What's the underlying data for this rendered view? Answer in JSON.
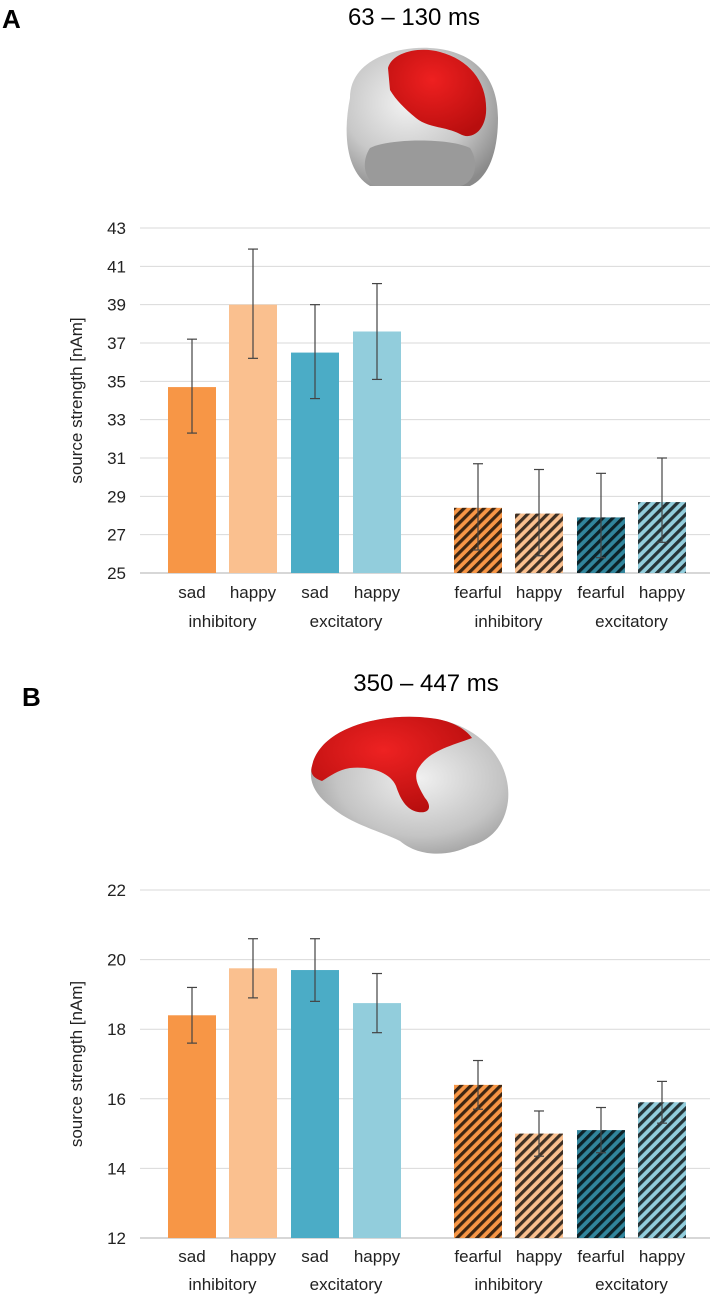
{
  "chart_data": [
    {
      "type": "bar",
      "panel": "A",
      "title": "63 – 130 ms",
      "ylabel": "source strength [nAm]",
      "ylim": [
        25,
        43
      ],
      "yticks": [
        25,
        27,
        29,
        31,
        33,
        35,
        37,
        39,
        41,
        43
      ],
      "grid": true,
      "groups": [
        {
          "label": "inhibitory",
          "bars": [
            {
              "label": "sad",
              "value": 34.7,
              "err_low": 32.3,
              "err_high": 37.2,
              "color": "#f79646",
              "hatch": false
            },
            {
              "label": "happy",
              "value": 39.0,
              "err_low": 36.2,
              "err_high": 41.9,
              "color": "#fac08f",
              "hatch": false
            }
          ]
        },
        {
          "label": "excitatory",
          "bars": [
            {
              "label": "sad",
              "value": 36.5,
              "err_low": 34.1,
              "err_high": 39.0,
              "color": "#4bacc6",
              "hatch": false
            },
            {
              "label": "happy",
              "value": 37.6,
              "err_low": 35.1,
              "err_high": 40.1,
              "color": "#92cddc",
              "hatch": false
            }
          ]
        },
        {
          "label": "inhibitory",
          "bars": [
            {
              "label": "fearful",
              "value": 28.4,
              "err_low": 26.2,
              "err_high": 30.7,
              "color": "#f79646",
              "hatch": true
            },
            {
              "label": "happy",
              "value": 28.1,
              "err_low": 25.9,
              "err_high": 30.4,
              "color": "#fac08f",
              "hatch": true
            }
          ]
        },
        {
          "label": "excitatory",
          "bars": [
            {
              "label": "fearful",
              "value": 27.9,
              "err_low": 25.8,
              "err_high": 30.2,
              "color": "#31859c",
              "hatch": true
            },
            {
              "label": "happy",
              "value": 28.7,
              "err_low": 26.6,
              "err_high": 31.0,
              "color": "#92cddc",
              "hatch": true
            }
          ]
        }
      ]
    },
    {
      "type": "bar",
      "panel": "B",
      "title": "350 – 447 ms",
      "ylabel": "source strength [nAm]",
      "ylim": [
        12,
        22
      ],
      "yticks": [
        12,
        14,
        16,
        18,
        20,
        22
      ],
      "grid": true,
      "groups": [
        {
          "label": "inhibitory",
          "bars": [
            {
              "label": "sad",
              "value": 18.4,
              "err_low": 17.6,
              "err_high": 19.2,
              "color": "#f79646",
              "hatch": false
            },
            {
              "label": "happy",
              "value": 19.75,
              "err_low": 18.9,
              "err_high": 20.6,
              "color": "#fac08f",
              "hatch": false
            }
          ]
        },
        {
          "label": "excitatory",
          "bars": [
            {
              "label": "sad",
              "value": 19.7,
              "err_low": 18.8,
              "err_high": 20.6,
              "color": "#4bacc6",
              "hatch": false
            },
            {
              "label": "happy",
              "value": 18.75,
              "err_low": 17.9,
              "err_high": 19.6,
              "color": "#92cddc",
              "hatch": false
            }
          ]
        },
        {
          "label": "inhibitory",
          "bars": [
            {
              "label": "fearful",
              "value": 16.4,
              "err_low": 15.7,
              "err_high": 17.1,
              "color": "#f79646",
              "hatch": true
            },
            {
              "label": "happy",
              "value": 15.0,
              "err_low": 14.35,
              "err_high": 15.65,
              "color": "#fac08f",
              "hatch": true
            }
          ]
        },
        {
          "label": "excitatory",
          "bars": [
            {
              "label": "fearful",
              "value": 15.1,
              "err_low": 14.45,
              "err_high": 15.75,
              "color": "#31859c",
              "hatch": true
            },
            {
              "label": "happy",
              "value": 15.9,
              "err_low": 15.3,
              "err_high": 16.5,
              "color": "#92cddc",
              "hatch": true
            }
          ]
        }
      ]
    }
  ],
  "panels": {
    "a": {
      "letter": "A",
      "title": "63 – 130 ms",
      "image": "brain-frontal-view"
    },
    "b": {
      "letter": "B",
      "title": "350 – 447 ms",
      "image": "brain-lateral-view"
    }
  }
}
